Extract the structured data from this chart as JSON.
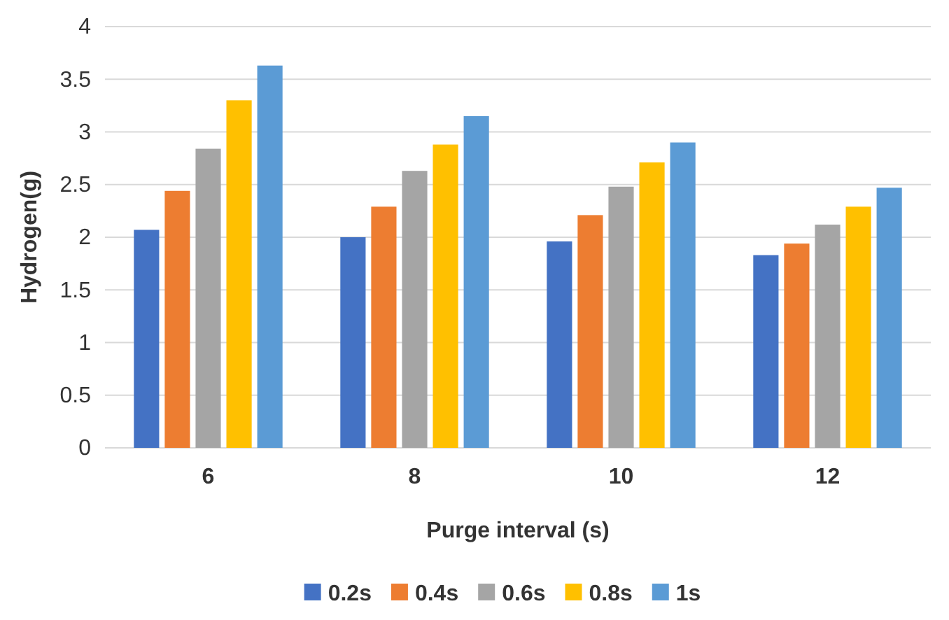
{
  "chart_data": {
    "type": "bar",
    "xlabel": "Purge interval (s)",
    "ylabel": "Hydrogen(g)",
    "categories": [
      "6",
      "8",
      "10",
      "12"
    ],
    "series": [
      {
        "name": "0.2s",
        "color": "#4472c4",
        "values": [
          2.07,
          2.0,
          1.96,
          1.83
        ]
      },
      {
        "name": "0.4s",
        "color": "#ed7d31",
        "values": [
          2.44,
          2.29,
          2.21,
          1.94
        ]
      },
      {
        "name": "0.6s",
        "color": "#a5a5a5",
        "values": [
          2.84,
          2.63,
          2.48,
          2.12
        ]
      },
      {
        "name": "0.8s",
        "color": "#ffc000",
        "values": [
          3.3,
          2.88,
          2.71,
          2.29
        ]
      },
      {
        "name": "1s",
        "color": "#5b9bd5",
        "values": [
          3.63,
          3.15,
          2.9,
          2.47
        ]
      }
    ],
    "ylim": [
      0,
      4
    ],
    "yticks": [
      0,
      0.5,
      1,
      1.5,
      2,
      2.5,
      3,
      3.5,
      4
    ],
    "grid": "y",
    "legend": "bottom"
  }
}
